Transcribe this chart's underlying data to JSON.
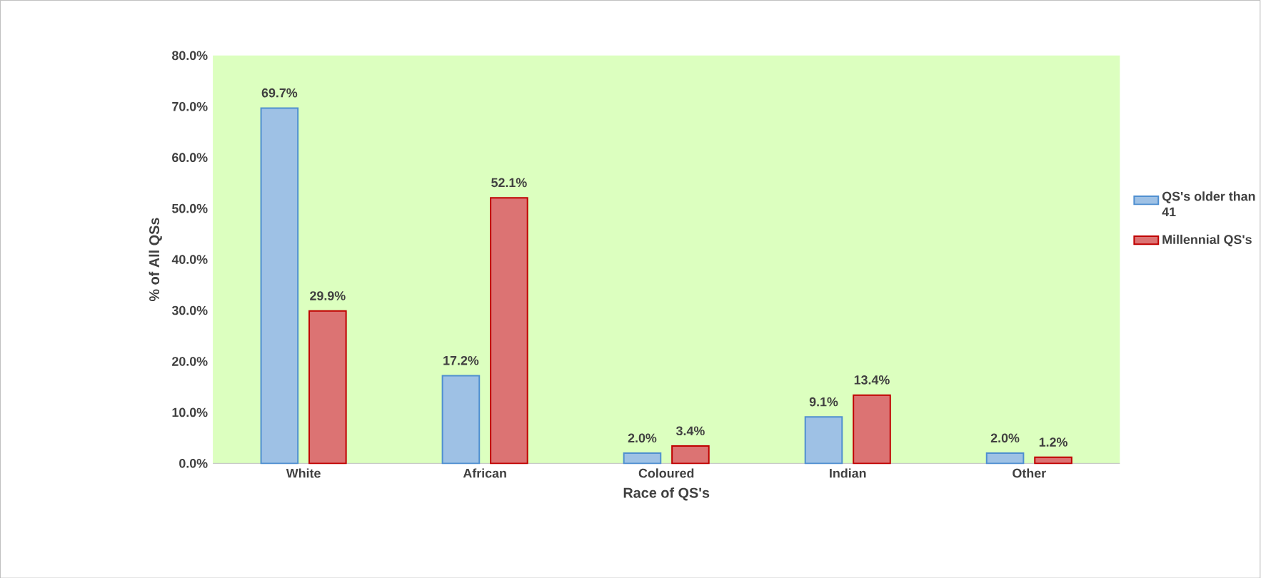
{
  "chart_data": {
    "type": "bar",
    "xlabel": "Race of QS's",
    "ylabel": "% of All QSs",
    "categories": [
      "White",
      "African",
      "Coloured",
      "Indian",
      "Other"
    ],
    "series": [
      {
        "name": "QS's older than 41",
        "color": "#4f8fd0",
        "values": [
          69.7,
          17.2,
          2.0,
          9.1,
          2.0
        ],
        "value_labels": [
          "69.7%",
          "17.2%",
          "2.0%",
          "9.1%",
          "2.0%"
        ]
      },
      {
        "name": "Millennial QS's",
        "color": "#c00000",
        "values": [
          29.9,
          52.1,
          3.4,
          13.4,
          1.2
        ],
        "value_labels": [
          "29.9%",
          "52.1%",
          "3.4%",
          "13.4%",
          "1.2%"
        ]
      }
    ],
    "ylim": [
      0,
      80
    ],
    "yticks": [
      {
        "value": 0,
        "label": "0.0%"
      },
      {
        "value": 10,
        "label": "10.0%"
      },
      {
        "value": 20,
        "label": "20.0%"
      },
      {
        "value": 30,
        "label": "30.0%"
      },
      {
        "value": 40,
        "label": "40.0%"
      },
      {
        "value": 50,
        "label": "50.0%"
      },
      {
        "value": 60,
        "label": "60.0%"
      },
      {
        "value": 70,
        "label": "70.0%"
      },
      {
        "value": 80,
        "label": "80.0%"
      }
    ],
    "legend": "right",
    "grid": false
  }
}
